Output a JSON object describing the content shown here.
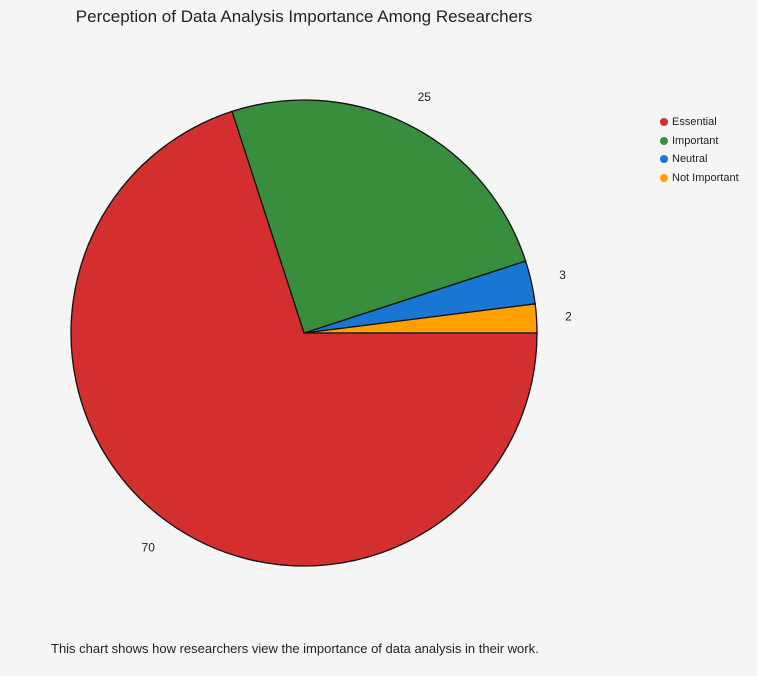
{
  "chart_data": {
    "type": "pie",
    "title": "Perception of Data Analysis Importance Among Researchers",
    "categories": [
      "Essential",
      "Important",
      "Neutral",
      "Not Important"
    ],
    "values": [
      70,
      25,
      3,
      2
    ],
    "colors": [
      "#d32f2f",
      "#388e3c",
      "#1976d2",
      "#ffa000"
    ],
    "legend_position": "top-right",
    "data_labels": [
      "70",
      "25",
      "3",
      "2"
    ]
  },
  "caption": "This chart shows how researchers view the importance of data analysis in their work."
}
